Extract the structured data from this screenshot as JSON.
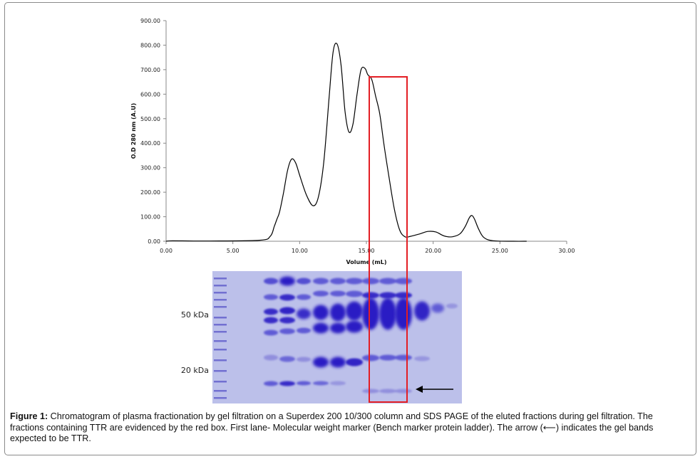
{
  "caption": {
    "label": "Figure 1:",
    "text": " Chromatogram of plasma fractionation by gel filtration on a Superdex 200 10/300 column and SDS PAGE of the eluted fractions during gel filtration. The fractions containing TTR are evidenced by the red box. First lane- Molecular weight marker (Bench marker protein ladder). The arrow (⟵) indicates the gel bands expected to be TTR."
  },
  "gel": {
    "markers": [
      "50 kDa",
      "20 kDa"
    ]
  },
  "colors": {
    "highlight_box": "#e31e24",
    "curve": "#000000",
    "gel_background": "#b9bde8",
    "gel_band": "#2a1fc4"
  },
  "chart_data": {
    "type": "line",
    "title": "",
    "xlabel": "Volume (mL)",
    "ylabel": "O.D 280 nm (A.U)",
    "xlim": [
      0,
      30
    ],
    "ylim": [
      0,
      900
    ],
    "x_ticks": [
      "0.00",
      "5.00",
      "10.00",
      "15.00",
      "20.00",
      "25.00",
      "30.00"
    ],
    "y_ticks": [
      "0.00",
      "100.00",
      "200.00",
      "300.00",
      "400.00",
      "500.00",
      "600.00",
      "700.00",
      "800.00",
      "900.00"
    ],
    "grid": false,
    "series": [
      {
        "x": [
          0,
          0.5,
          3,
          7,
          7.8,
          8.1,
          8.3,
          8.5,
          8.8,
          9.1,
          9.4,
          9.7,
          10.0,
          10.5,
          11.0,
          11.4,
          11.8,
          12.2,
          12.5,
          12.8,
          13.1,
          13.4,
          13.7,
          14.0,
          14.3,
          14.6,
          14.9,
          15.1,
          15.4,
          15.7,
          16.0,
          16.3,
          16.7,
          17.1,
          17.5,
          17.9,
          18.3,
          19.0,
          19.6,
          20.2,
          20.8,
          21.4,
          22.0,
          22.4,
          22.7,
          22.9,
          23.1,
          23.4,
          23.8,
          24.5,
          26,
          27
        ],
        "y": [
          0,
          2,
          1,
          4,
          20,
          60,
          90,
          120,
          200,
          290,
          335,
          320,
          270,
          190,
          145,
          180,
          320,
          580,
          770,
          805,
          720,
          530,
          445,
          480,
          600,
          700,
          705,
          680,
          660,
          590,
          520,
          400,
          260,
          130,
          45,
          18,
          20,
          30,
          40,
          38,
          22,
          18,
          30,
          60,
          95,
          105,
          90,
          50,
          15,
          2,
          0,
          0
        ]
      }
    ],
    "annotations": [
      "red box marks TTR-containing fractions (~15.5–18 mL)"
    ]
  }
}
